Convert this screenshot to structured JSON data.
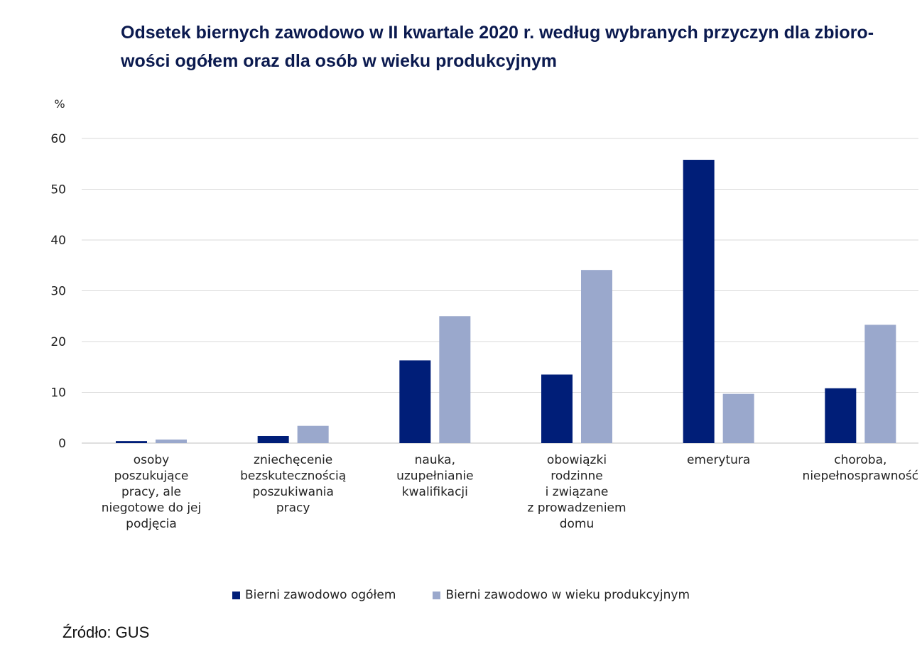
{
  "title_lines": [
    "Odsetek biernych zawodowo w II kwartale 2020 r. według wybranych przyczyn dla zbioro-",
    "wości ogółem oraz dla osób w wieku produkcyjnym"
  ],
  "source": "Źródło: GUS",
  "colors": {
    "series1": "#001e78",
    "series2": "#9aa8cc",
    "grid": "#d9d9d9",
    "axis": "#bfbfbf",
    "text": "#222222"
  },
  "chart_data": {
    "type": "bar",
    "title": "Odsetek biernych zawodowo w II kwartale 2020 r. według wybranych przyczyn dla zbiorowości ogółem oraz dla osób w wieku produkcyjnym",
    "ylabel": "%",
    "ylim": [
      0,
      60
    ],
    "yticks": [
      0,
      10,
      20,
      30,
      40,
      50,
      60
    ],
    "grid": true,
    "legend_position": "bottom-center",
    "categories": [
      [
        "osoby",
        "poszukujące",
        "pracy, ale",
        "niegotowe do jej",
        "podjęcia"
      ],
      [
        "zniechęcenie",
        "bezskutecznością",
        "poszukiwania",
        "pracy"
      ],
      [
        "nauka,",
        "uzupełnianie",
        "kwalifikacji"
      ],
      [
        "obowiązki",
        "rodzinne",
        "i związane",
        "z prowadzeniem",
        "domu"
      ],
      [
        "emerytura"
      ],
      [
        "choroba,",
        "niepełnosprawność"
      ]
    ],
    "series": [
      {
        "name": "Bierni zawodowo ogółem",
        "values": [
          0.4,
          1.4,
          16.3,
          13.5,
          55.8,
          10.8
        ]
      },
      {
        "name": "Bierni zawodowo w wieku produkcyjnym",
        "values": [
          0.7,
          3.4,
          25.0,
          34.1,
          9.7,
          23.3
        ]
      }
    ]
  }
}
